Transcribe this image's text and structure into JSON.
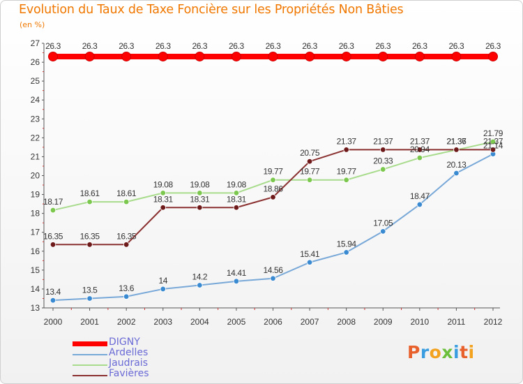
{
  "header": {
    "title": "Evolution du Taux de Taxe Foncière sur les Propriétés Non Bâties",
    "subtitle": "(en %)"
  },
  "logo": {
    "letters": [
      "P",
      "r",
      "o",
      "x",
      "i",
      "t",
      "i"
    ],
    "colors": [
      "#e8602c",
      "#3a9de0",
      "#f2a21e",
      "#6bbf3a",
      "#3a9de0",
      "#e8602c",
      "#f2a21e"
    ]
  },
  "chart_data": {
    "type": "line",
    "title": "Evolution du Taux de Taxe Foncière sur les Propriétés Non Bâties",
    "ylabel": "(en %)",
    "xlabel": "",
    "x": [
      "2000",
      "2001",
      "2002",
      "2003",
      "2004",
      "2005",
      "2006",
      "2007",
      "2008",
      "2009",
      "2010",
      "2011",
      "2012"
    ],
    "ylim": [
      13,
      27
    ],
    "yticks": [
      13,
      14,
      15,
      16,
      17,
      18,
      19,
      20,
      21,
      22,
      23,
      24,
      25,
      26,
      27
    ],
    "grid": false,
    "legend_position": "bottom-left",
    "series": [
      {
        "name": "DIGNY",
        "color": "#ff0000",
        "thick": true,
        "values": [
          26.3,
          26.3,
          26.3,
          26.3,
          26.3,
          26.3,
          26.3,
          26.3,
          26.3,
          26.3,
          26.3,
          26.3,
          26.3
        ],
        "labels": [
          "26.3",
          "26.3",
          "26.3",
          "26.3",
          "26.3",
          "26.3",
          "26.3",
          "26.3",
          "26.3",
          "26.3",
          "26.3",
          "26.3",
          "26.3"
        ]
      },
      {
        "name": "Ardelles",
        "color": "#78a8d8",
        "marker": "#3a8ad2",
        "values": [
          13.4,
          13.5,
          13.6,
          14.0,
          14.2,
          14.41,
          14.56,
          15.41,
          15.94,
          17.05,
          18.47,
          20.13,
          21.14
        ],
        "labels": [
          "13.4",
          "13.5",
          "13.6",
          "14",
          "14.2",
          "14.41",
          "14.56",
          "15.41",
          "15.94",
          "17.05",
          "18.47",
          "20.13",
          "21.14"
        ]
      },
      {
        "name": "Jaudrais",
        "color": "#a8dc8c",
        "marker": "#7cc84e",
        "values": [
          18.17,
          18.61,
          18.61,
          19.08,
          19.08,
          19.08,
          19.77,
          19.77,
          19.77,
          20.33,
          20.94,
          21.36,
          21.79
        ],
        "labels": [
          "18.17",
          "18.61",
          "18.61",
          "19.08",
          "19.08",
          "19.08",
          "19.77",
          "19.77",
          "19.77",
          "20.33",
          "20.94",
          "21.36",
          "21.79"
        ]
      },
      {
        "name": "Favières",
        "color": "#8a3030",
        "marker": "#6e1a1a",
        "values": [
          16.35,
          16.35,
          16.35,
          18.31,
          18.31,
          18.31,
          18.86,
          20.75,
          21.37,
          21.37,
          21.37,
          21.37,
          21.37
        ],
        "labels": [
          "16.35",
          "16.35",
          "16.35",
          "18.31",
          "18.31",
          "18.31",
          "18.86",
          "20.75",
          "21.37",
          "21.37",
          "21.37",
          "21.37",
          "21.37"
        ]
      }
    ]
  }
}
